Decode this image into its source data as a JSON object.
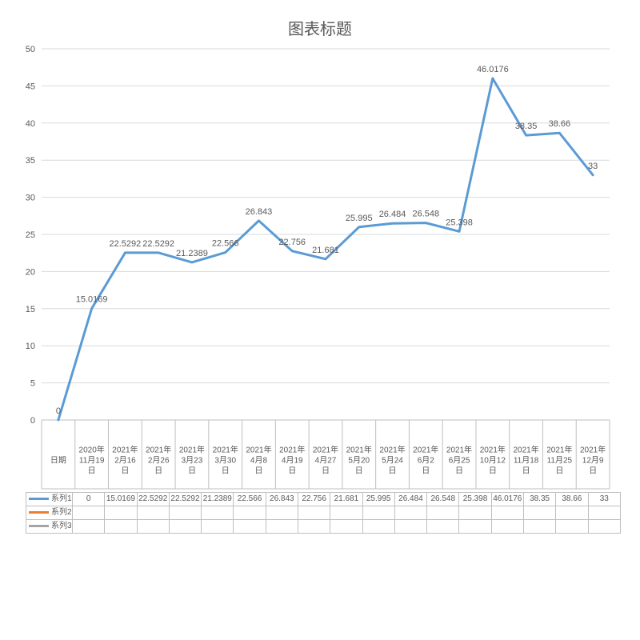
{
  "chart": {
    "type": "line",
    "title": "图表标题",
    "title_fontsize": 20,
    "background_color": "#ffffff",
    "grid_color": "#d9d9d9",
    "axis_color": "#bfbfbf",
    "text_color": "#595959",
    "label_fontsize": 11,
    "datalabel_fontsize": 11,
    "line_width": 3,
    "ylim": [
      0,
      50
    ],
    "ytick_step": 5,
    "categories": [
      "日期",
      "2020年11月19日",
      "2021年2月16日",
      "2021年2月26日",
      "2021年3月23日",
      "2021年3月30日",
      "2021年4月8日",
      "2021年4月19日",
      "2021年4月27日",
      "2021年5月20日",
      "2021年5月24日",
      "2021年6月2日",
      "2021年6月25日",
      "2021年10月12日",
      "2021年11月18日",
      "2021年11月25日",
      "2021年12月9日"
    ],
    "series": [
      {
        "name": "系列1",
        "color": "#5b9bd5",
        "values": [
          0,
          15.0169,
          22.5292,
          22.5292,
          21.2389,
          22.566,
          26.843,
          22.756,
          21.681,
          25.995,
          26.484,
          26.548,
          25.398,
          46.0176,
          38.35,
          38.66,
          33
        ]
      },
      {
        "name": "系列2",
        "color": "#ed7d31",
        "values": []
      },
      {
        "name": "系列3",
        "color": "#a5a5a5",
        "values": []
      }
    ]
  }
}
